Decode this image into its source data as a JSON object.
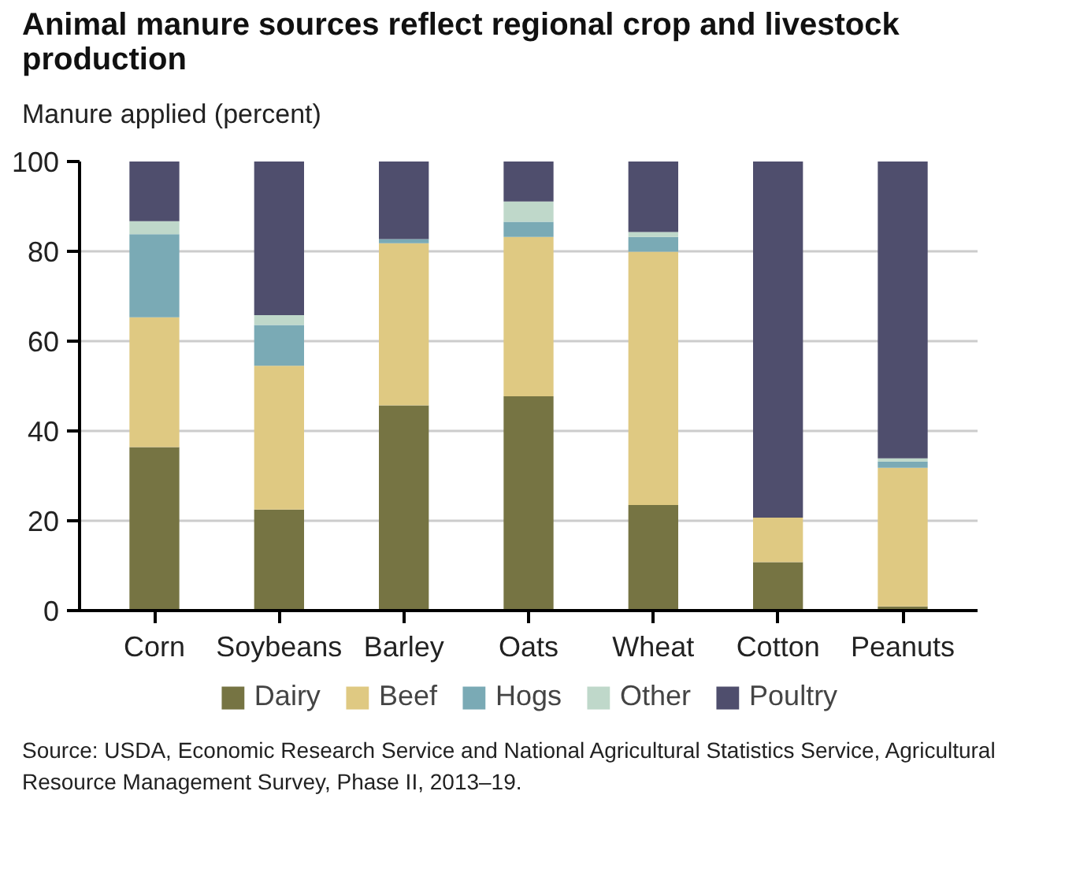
{
  "chart_data": {
    "type": "bar",
    "title": "Animal manure sources reflect regional crop and livestock production",
    "ylabel": "Manure applied (percent)",
    "categories": [
      "Corn",
      "Soybeans",
      "Barley",
      "Oats",
      "Wheat",
      "Cotton",
      "Peanuts"
    ],
    "stacked": true,
    "series": [
      {
        "name": "Dairy",
        "color": "#767443",
        "values": [
          36.4,
          22.5,
          45.7,
          47.7,
          23.5,
          10.8,
          0.9
        ]
      },
      {
        "name": "Beef",
        "color": "#dfc982",
        "values": [
          28.9,
          32.0,
          36.1,
          35.5,
          56.4,
          9.9,
          30.9
        ]
      },
      {
        "name": "Hogs",
        "color": "#7aaab5",
        "values": [
          18.5,
          9.1,
          0.9,
          3.4,
          3.3,
          0,
          1.4
        ]
      },
      {
        "name": "Other",
        "color": "#bfd8ca",
        "values": [
          2.9,
          2.2,
          null,
          4.5,
          1.1,
          0,
          0.7
        ]
      },
      {
        "name": "Poultry",
        "color": "#4f4e6d",
        "values": [
          13.3,
          34.2,
          17.3,
          8.9,
          15.7,
          79.3,
          66.1
        ]
      }
    ],
    "ylim": [
      0,
      100
    ],
    "yticks": [
      0,
      20,
      40,
      60,
      80,
      100
    ],
    "grid": "y",
    "legend": "bottom",
    "annotations": [
      "Source: USDA, Economic Research Service and National Agricultural Statistics Service, Agricultural Resource Management Survey, Phase II, 2013–19."
    ]
  }
}
